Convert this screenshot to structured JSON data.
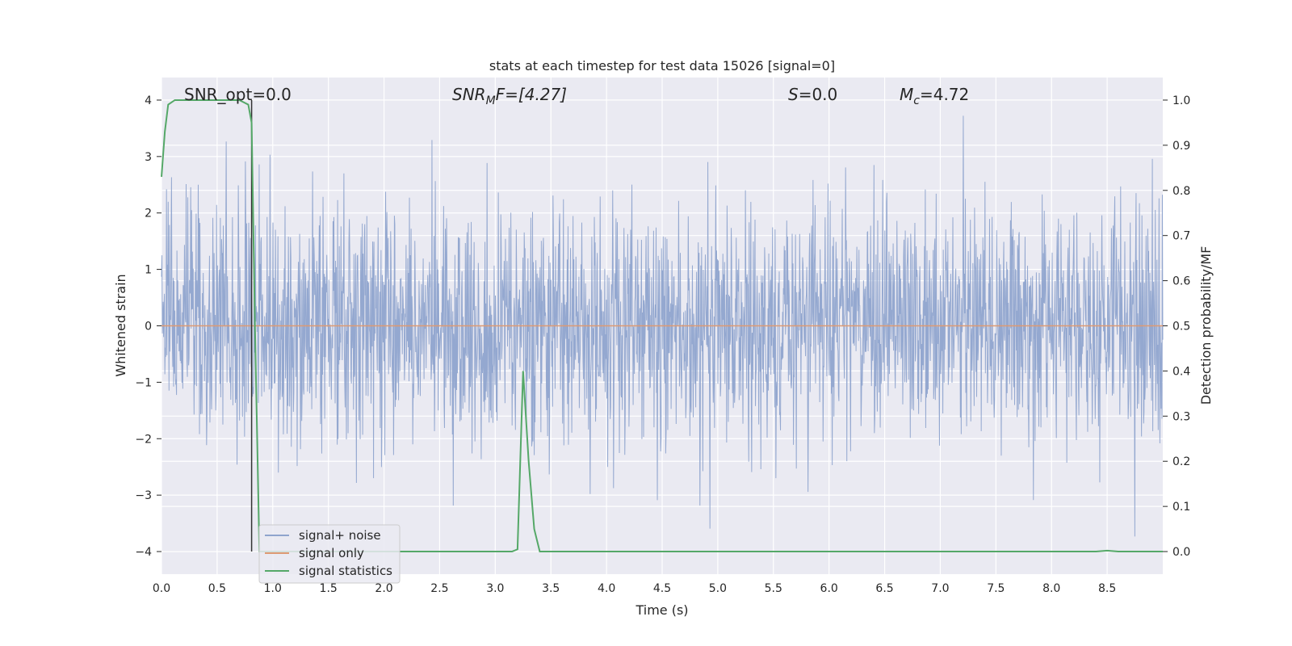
{
  "chart_data": {
    "type": "line",
    "title": "stats at each timestep for test data 15026 [signal=0]",
    "xlabel": "Time (s)",
    "ylabel_left": "Whitened strain",
    "ylabel_right": "Detection probability/MF",
    "xlim": [
      0.0,
      9.0
    ],
    "ylim_left": [
      -4.4,
      4.4
    ],
    "ylim_right": [
      -0.05,
      1.05
    ],
    "x_ticks": [
      "0.0",
      "0.5",
      "1.0",
      "1.5",
      "2.0",
      "2.5",
      "3.0",
      "3.5",
      "4.0",
      "4.5",
      "5.0",
      "5.5",
      "6.0",
      "6.5",
      "7.0",
      "7.5",
      "8.0",
      "8.5"
    ],
    "y_left_ticks": [
      "−4",
      "−3",
      "−2",
      "−1",
      "0",
      "1",
      "2",
      "3",
      "4"
    ],
    "y_right_ticks": [
      "0.0",
      "0.1",
      "0.2",
      "0.3",
      "0.4",
      "0.5",
      "0.6",
      "0.7",
      "0.8",
      "0.9",
      "1.0"
    ],
    "grid": true,
    "legend_position": "lower-left",
    "annotations": {
      "snr_opt": "SNR_opt=0.0",
      "snr_mf_prefix": "SNR",
      "snr_mf_sub": "M",
      "snr_mf_suffix": "F=[4.27]",
      "s_main": "S",
      "s_value": "=0.0",
      "mc_main": "M",
      "mc_sub": "c",
      "mc_value": "=4.72"
    },
    "marker_line_x": 0.81,
    "series": [
      {
        "name": "signal+ noise",
        "color": "#8fa4cd",
        "axis": "left",
        "description": "dense whitened noise, roughly within [-3.7, 3.8]"
      },
      {
        "name": "signal only",
        "color": "#dd9a73",
        "axis": "left",
        "x": [
          0.0,
          9.0
        ],
        "y": [
          0.0,
          0.0
        ]
      },
      {
        "name": "signal statistics",
        "color": "#55a868",
        "axis": "right",
        "x": [
          0.0,
          0.03,
          0.06,
          0.12,
          0.25,
          0.5,
          0.6,
          0.7,
          0.78,
          0.81,
          0.84,
          0.88,
          0.95,
          1.5,
          2.0,
          2.5,
          3.0,
          3.15,
          3.2,
          3.25,
          3.3,
          3.35,
          3.4,
          4.0,
          5.0,
          6.0,
          7.0,
          8.0,
          8.4,
          8.5,
          8.6,
          9.0
        ],
        "y": [
          0.83,
          0.93,
          0.99,
          1.0,
          1.0,
          1.0,
          1.0,
          1.0,
          0.99,
          0.95,
          0.5,
          0.0,
          0.0,
          0.0,
          0.0,
          0.0,
          0.0,
          0.0,
          0.005,
          0.4,
          0.2,
          0.05,
          0.0,
          0.0,
          0.0,
          0.0,
          0.0,
          0.0,
          0.0,
          0.002,
          0.0,
          0.0
        ]
      }
    ]
  }
}
